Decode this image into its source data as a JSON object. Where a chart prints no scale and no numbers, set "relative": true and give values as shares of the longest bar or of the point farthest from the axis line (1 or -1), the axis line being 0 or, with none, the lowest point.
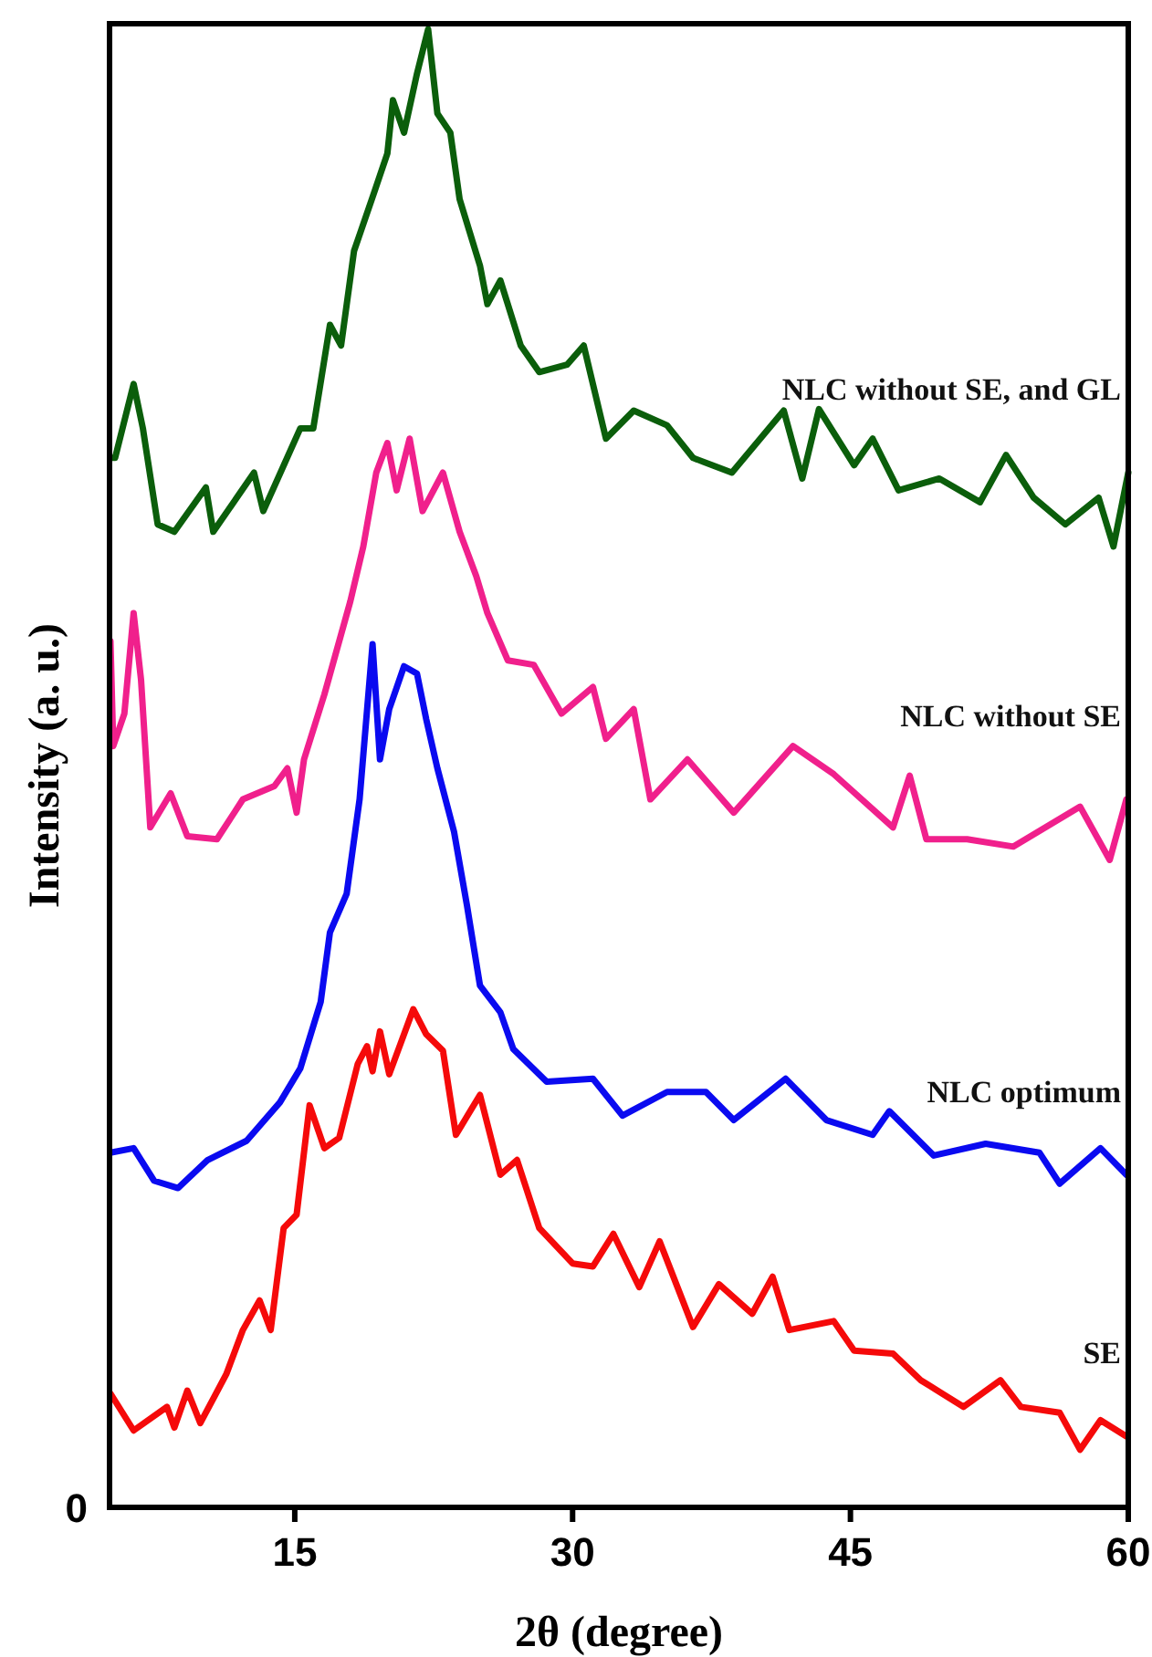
{
  "chart_data": {
    "type": "line",
    "relative": true,
    "xlabel": "2θ (degree)",
    "ylabel": "Intensity (a. u.)",
    "xlim": [
      5,
      60
    ],
    "xticks": [
      15,
      30,
      45,
      60
    ],
    "annotations": [
      "0"
    ],
    "grid": false,
    "legend": false,
    "marker": "none",
    "line_style": "solid",
    "series": [
      {
        "name": "NLC without SE, and GL",
        "color": "#0b5e0b",
        "x": [
          5.05,
          5.3,
          6.3,
          6.8,
          7.6,
          8.5,
          10.2,
          10.6,
          12.8,
          13.3,
          15.3,
          16.0,
          16.9,
          17.5,
          18.2,
          19.3,
          20.0,
          20.3,
          20.9,
          21.6,
          22.2,
          22.7,
          23.4,
          23.9,
          25.0,
          25.4,
          26.1,
          27.2,
          28.2,
          29.7,
          30.6,
          31.8,
          33.3,
          35.1,
          36.5,
          38.6,
          41.4,
          42.4,
          43.3,
          45.2,
          46.2,
          47.6,
          49.8,
          52.0,
          53.4,
          54.9,
          56.6,
          58.4,
          59.2,
          60
        ],
        "values": [
          0.71,
          0.71,
          0.76,
          0.73,
          0.665,
          0.66,
          0.69,
          0.66,
          0.7,
          0.674,
          0.73,
          0.73,
          0.8,
          0.786,
          0.85,
          0.89,
          0.916,
          0.952,
          0.93,
          0.97,
          1.0,
          0.943,
          0.93,
          0.885,
          0.84,
          0.814,
          0.83,
          0.786,
          0.768,
          0.773,
          0.786,
          0.723,
          0.742,
          0.732,
          0.71,
          0.7,
          0.742,
          0.696,
          0.743,
          0.705,
          0.723,
          0.688,
          0.696,
          0.68,
          0.712,
          0.683,
          0.665,
          0.683,
          0.65,
          0.7
        ]
      },
      {
        "name": "NLC without SE",
        "color": "#f0208c",
        "x": [
          5.05,
          5.2,
          5.8,
          6.3,
          6.7,
          7.2,
          8.3,
          9.2,
          10.8,
          12.2,
          13.9,
          14.6,
          15.1,
          15.5,
          16.6,
          18.0,
          18.7,
          19.4,
          20.0,
          20.5,
          21.2,
          21.9,
          23.0,
          23.9,
          24.8,
          25.4,
          26.5,
          27.9,
          29.4,
          31.1,
          31.8,
          33.3,
          34.2,
          36.2,
          38.7,
          41.9,
          44.1,
          47.3,
          48.2,
          49.1,
          51.3,
          53.8,
          57.4,
          59.0,
          59.9
        ],
        "values": [
          0.586,
          0.515,
          0.537,
          0.605,
          0.56,
          0.46,
          0.483,
          0.454,
          0.452,
          0.479,
          0.488,
          0.5,
          0.47,
          0.506,
          0.55,
          0.613,
          0.65,
          0.7,
          0.72,
          0.688,
          0.723,
          0.674,
          0.7,
          0.66,
          0.63,
          0.605,
          0.573,
          0.57,
          0.537,
          0.555,
          0.52,
          0.54,
          0.479,
          0.506,
          0.47,
          0.515,
          0.496,
          0.46,
          0.495,
          0.452,
          0.452,
          0.447,
          0.474,
          0.438,
          0.479
        ]
      },
      {
        "name": "NLC optimum",
        "color": "#0a0af0",
        "x": [
          5.05,
          6.3,
          7.4,
          8.7,
          10.3,
          12.4,
          14.2,
          15.3,
          16.4,
          16.9,
          17.8,
          18.5,
          19.2,
          19.6,
          20.1,
          20.9,
          21.6,
          22.1,
          22.7,
          23.6,
          24.3,
          25.0,
          26.1,
          26.8,
          28.6,
          31.1,
          32.7,
          35.1,
          37.2,
          38.7,
          41.5,
          43.7,
          46.2,
          47.1,
          49.5,
          52.3,
          55.2,
          56.3,
          58.5,
          59.9
        ],
        "values": [
          0.24,
          0.243,
          0.221,
          0.216,
          0.235,
          0.248,
          0.274,
          0.297,
          0.342,
          0.389,
          0.415,
          0.479,
          0.584,
          0.506,
          0.54,
          0.569,
          0.564,
          0.533,
          0.5,
          0.457,
          0.407,
          0.353,
          0.335,
          0.31,
          0.288,
          0.29,
          0.265,
          0.281,
          0.281,
          0.262,
          0.29,
          0.262,
          0.252,
          0.268,
          0.238,
          0.246,
          0.24,
          0.219,
          0.243,
          0.225
        ]
      },
      {
        "name": "SE",
        "color": "#f50a0a",
        "x": [
          5.05,
          6.3,
          8.1,
          8.5,
          9.2,
          9.9,
          11.3,
          12.2,
          13.1,
          13.7,
          14.4,
          15.1,
          15.8,
          16.6,
          17.4,
          18.4,
          18.9,
          19.2,
          19.6,
          20.1,
          21.4,
          22.1,
          23.0,
          23.7,
          25.0,
          26.1,
          27.0,
          28.2,
          30.0,
          31.1,
          32.2,
          33.6,
          34.7,
          36.5,
          37.9,
          39.7,
          40.8,
          41.7,
          44.1,
          45.2,
          47.3,
          48.8,
          51.1,
          53.1,
          54.2,
          56.3,
          57.4,
          58.5,
          59.9
        ],
        "values": [
          0.077,
          0.052,
          0.068,
          0.054,
          0.079,
          0.057,
          0.09,
          0.12,
          0.14,
          0.12,
          0.189,
          0.198,
          0.272,
          0.243,
          0.25,
          0.3,
          0.312,
          0.295,
          0.322,
          0.293,
          0.337,
          0.32,
          0.309,
          0.252,
          0.279,
          0.225,
          0.235,
          0.189,
          0.165,
          0.163,
          0.185,
          0.149,
          0.18,
          0.122,
          0.151,
          0.131,
          0.156,
          0.12,
          0.126,
          0.106,
          0.104,
          0.086,
          0.068,
          0.086,
          0.068,
          0.064,
          0.039,
          0.059,
          0.048
        ]
      }
    ]
  }
}
